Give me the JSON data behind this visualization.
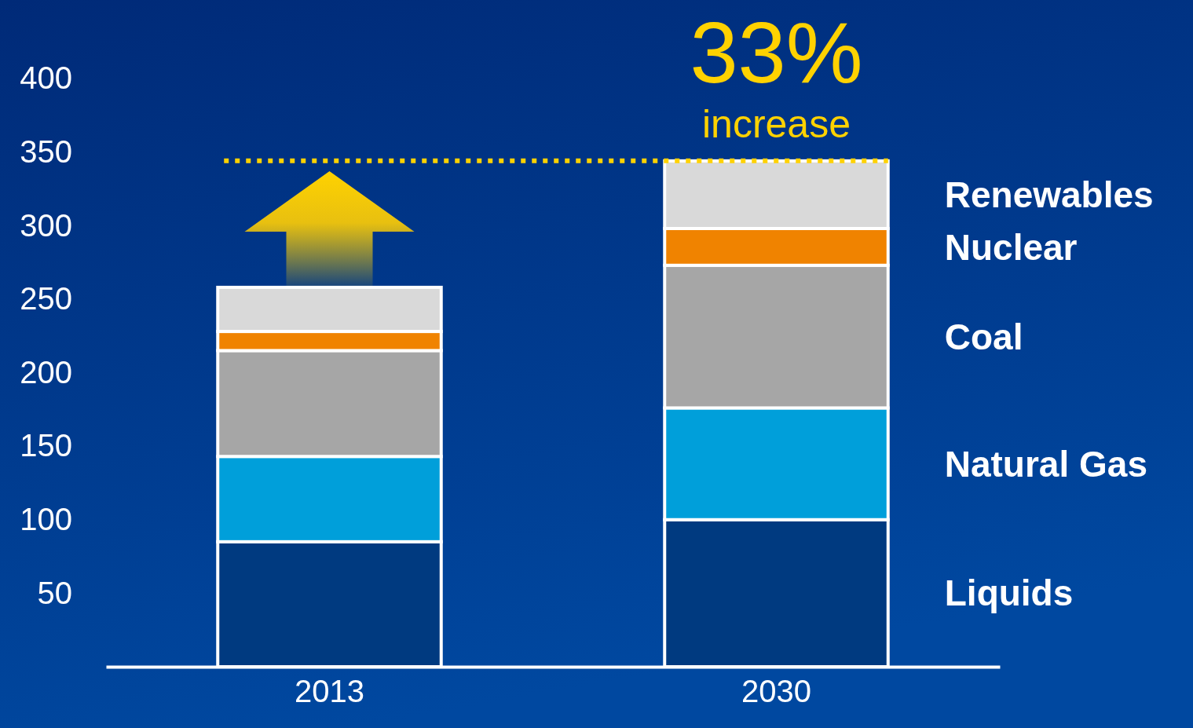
{
  "chart_data": {
    "type": "bar",
    "stacked": true,
    "categories": [
      "2013",
      "2030"
    ],
    "series": [
      {
        "name": "Liquids",
        "color": "#003a80",
        "values": [
          85,
          100
        ]
      },
      {
        "name": "Natural Gas",
        "color": "#009fda",
        "values": [
          58,
          76
        ]
      },
      {
        "name": "Coal",
        "color": "#a6a6a6",
        "values": [
          72,
          97
        ]
      },
      {
        "name": "Nuclear",
        "color": "#f08300",
        "values": [
          13,
          25
        ]
      },
      {
        "name": "Renewables",
        "color": "#d9d9d9",
        "values": [
          30,
          46
        ]
      }
    ],
    "ylim": [
      0,
      400
    ],
    "yticks": [
      50,
      100,
      150,
      200,
      250,
      300,
      350,
      400
    ],
    "grid": false,
    "legend": "right",
    "ref_lines": [
      {
        "axis": "y",
        "value": 344,
        "color": "#ffd200",
        "line_style": "dotted"
      }
    ],
    "annotations": [
      "33%",
      "increase"
    ]
  }
}
